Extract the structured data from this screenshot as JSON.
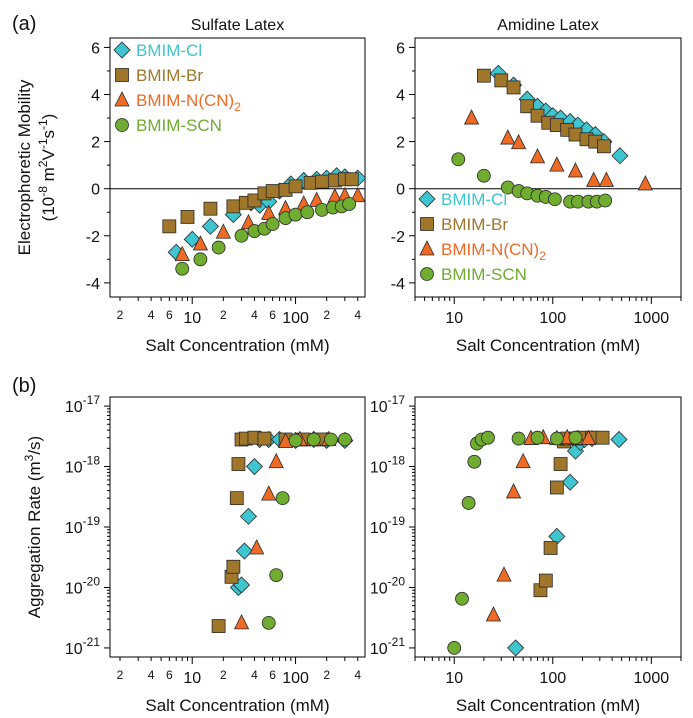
{
  "figure": {
    "panel_tags": [
      "(a)",
      "(b)"
    ]
  },
  "chart_data": [
    {
      "id": "a-left",
      "type": "scatter",
      "title": "Sulfate Latex",
      "xlabel": "Salt Concentration (mM)",
      "ylabel_line1": "Electrophoretic Mobility",
      "ylabel_line2": "(10",
      "ylabel_sup1": "-8",
      "ylabel_mid": " m",
      "ylabel_sup2": "2",
      "ylabel_mid2": "V",
      "ylabel_sup3": "-1",
      "ylabel_mid3": "s",
      "ylabel_sup4": "-1",
      "ylabel_end": ")",
      "xscale": "log",
      "xlim": [
        1.6,
        470
      ],
      "ylim": [
        -4.6,
        6.4
      ],
      "xticks_major": [
        "10",
        "100"
      ],
      "xticks_minor": [
        "2",
        "4",
        "6",
        "2",
        "4",
        "6",
        "2",
        "4"
      ],
      "yticks": [
        "-4",
        "-2",
        "0",
        "2",
        "4",
        "6"
      ],
      "zero_line": true,
      "legend": {
        "position": "top-left"
      },
      "series": [
        {
          "name": "BMIM-Cl",
          "color": "#3ec5cf",
          "marker": "diamond",
          "x": [
            7,
            10,
            15,
            25,
            37,
            45,
            55,
            70,
            90,
            120,
            160,
            200,
            250,
            300,
            400
          ],
          "y": [
            -2.7,
            -2.15,
            -1.6,
            -1.1,
            -0.6,
            -0.7,
            -0.55,
            -0.1,
            0.2,
            0.35,
            0.4,
            0.45,
            0.55,
            0.5,
            0.45
          ]
        },
        {
          "name": "BMIM-Br",
          "color": "#a0762a",
          "marker": "square",
          "x": [
            6,
            9,
            15,
            25,
            33,
            40,
            50,
            60,
            80,
            100,
            140,
            180,
            240,
            300,
            350
          ],
          "y": [
            -1.6,
            -1.2,
            -0.85,
            -0.75,
            -0.6,
            -0.5,
            -0.2,
            -0.1,
            -0.05,
            0.1,
            0.25,
            0.3,
            0.35,
            0.4,
            0.4
          ]
        },
        {
          "name": "BMIM-N(CN)",
          "name_sub": "2",
          "color": "#ee6b25",
          "marker": "triangle",
          "x": [
            8,
            12,
            20,
            35,
            55,
            80,
            120,
            160,
            240,
            300,
            400
          ],
          "y": [
            -2.8,
            -2.35,
            -1.85,
            -1.45,
            -1.05,
            -0.85,
            -0.65,
            -0.5,
            -0.35,
            -0.3,
            -0.3
          ]
        },
        {
          "name": "BMIM-SCN",
          "color": "#6fac2f",
          "marker": "circle",
          "x": [
            8,
            12,
            18,
            30,
            40,
            50,
            60,
            80,
            100,
            130,
            180,
            230,
            280,
            330
          ],
          "y": [
            -3.4,
            -3.0,
            -2.5,
            -2.0,
            -1.8,
            -1.7,
            -1.5,
            -1.25,
            -1.1,
            -1.0,
            -0.9,
            -0.8,
            -0.75,
            -0.65
          ]
        }
      ]
    },
    {
      "id": "a-right",
      "type": "scatter",
      "title": "Amidine Latex",
      "xlabel": "Salt Concentration (mM)",
      "xscale": "log",
      "xlim": [
        4,
        2000
      ],
      "ylim": [
        -4.6,
        6.4
      ],
      "xticks_major": [
        "10",
        "100",
        "1000"
      ],
      "yticks": [
        "-4",
        "-2",
        "0",
        "2",
        "4",
        "6"
      ],
      "zero_line": true,
      "legend": {
        "position": "bottom-left"
      },
      "series": [
        {
          "name": "BMIM-Cl",
          "color": "#3ec5cf",
          "marker": "diamond",
          "x": [
            28,
            40,
            55,
            70,
            85,
            100,
            120,
            150,
            180,
            220,
            270,
            330,
            480
          ],
          "y": [
            4.9,
            4.4,
            3.8,
            3.5,
            3.3,
            3.1,
            3.0,
            2.85,
            2.7,
            2.5,
            2.3,
            2.0,
            1.4
          ]
        },
        {
          "name": "BMIM-Br",
          "color": "#a0762a",
          "marker": "square",
          "x": [
            20,
            30,
            40,
            55,
            70,
            90,
            110,
            140,
            170,
            220,
            270,
            330
          ],
          "y": [
            4.8,
            4.6,
            4.3,
            3.5,
            3.1,
            2.8,
            2.7,
            2.5,
            2.3,
            2.1,
            2.0,
            1.8
          ]
        },
        {
          "name": "BMIM-N(CN)",
          "name_sub": "2",
          "color": "#ee6b25",
          "marker": "triangle",
          "x": [
            15,
            35,
            45,
            70,
            110,
            170,
            260,
            350,
            870
          ],
          "y": [
            3.0,
            2.15,
            1.95,
            1.35,
            1.0,
            0.75,
            0.35,
            0.35,
            0.2
          ]
        },
        {
          "name": "BMIM-SCN",
          "color": "#6fac2f",
          "marker": "circle",
          "x": [
            11,
            20,
            35,
            45,
            55,
            70,
            85,
            105,
            150,
            180,
            230,
            280,
            340
          ],
          "y": [
            1.25,
            0.55,
            0.05,
            -0.1,
            -0.2,
            -0.3,
            -0.35,
            -0.45,
            -0.55,
            -0.55,
            -0.55,
            -0.55,
            -0.5
          ]
        }
      ]
    },
    {
      "id": "b-left",
      "type": "scatter",
      "xlabel": "Salt Concentration (mM)",
      "ylabel": "Aggregation Rate (m",
      "ylabel_sup": "3",
      "ylabel_end": "/s)",
      "xscale": "log",
      "yscale": "log",
      "xlim": [
        1.6,
        470
      ],
      "ylim_exp": [
        -21.15,
        -16.85
      ],
      "xticks_major": [
        "10",
        "100"
      ],
      "xticks_minor": [
        "2",
        "4",
        "6",
        "2",
        "4",
        "6",
        "2",
        "4"
      ],
      "yticks_base": "10",
      "yticks_exp": [
        "-21",
        "-20",
        "-19",
        "-18",
        "-17"
      ],
      "series": [
        {
          "name": "BMIM-Cl",
          "color": "#3ec5cf",
          "marker": "diamond",
          "x": [
            28,
            30,
            32,
            35,
            40,
            45,
            55,
            70,
            100,
            150,
            200,
            300
          ],
          "y": [
            1e-20,
            1.1e-20,
            4e-20,
            1.5e-19,
            1e-18,
            2.8e-18,
            2.8e-18,
            2.8e-18,
            2.7e-18,
            2.8e-18,
            2.7e-18,
            2.7e-18
          ]
        },
        {
          "name": "BMIM-Br",
          "color": "#a0762a",
          "marker": "square",
          "x": [
            18,
            24,
            25,
            27,
            28,
            30,
            33,
            40,
            50,
            80,
            120,
            180
          ],
          "y": [
            2.3e-21,
            1.5e-20,
            2.2e-20,
            3e-19,
            1.1e-18,
            2.8e-18,
            2.9e-18,
            3e-18,
            2.9e-18,
            2.8e-18,
            2.8e-18,
            2.8e-18
          ]
        },
        {
          "name": "BMIM-N(CN)",
          "name_sub": "2",
          "color": "#ee6b25",
          "marker": "triangle",
          "x": [
            30,
            42,
            55,
            65,
            80,
            110,
            150,
            210
          ],
          "y": [
            2.6e-21,
            4.5e-20,
            3.5e-19,
            1.2e-18,
            2.6e-18,
            2.8e-18,
            2.8e-18,
            2.8e-18
          ]
        },
        {
          "name": "BMIM-SCN",
          "color": "#6fac2f",
          "marker": "circle",
          "x": [
            55,
            65,
            75,
            100,
            150,
            220,
            300
          ],
          "y": [
            2.6e-21,
            1.6e-20,
            3e-19,
            2.7e-18,
            2.8e-18,
            2.8e-18,
            2.8e-18
          ]
        }
      ]
    },
    {
      "id": "b-right",
      "type": "scatter",
      "xlabel": "Salt Concentration (mM)",
      "xscale": "log",
      "yscale": "log",
      "xlim": [
        4,
        2000
      ],
      "ylim_exp": [
        -21.15,
        -16.85
      ],
      "xticks_major": [
        "10",
        "100",
        "1000"
      ],
      "yticks_base": "10",
      "yticks_exp": [
        "-21",
        "-20",
        "-19",
        "-18",
        "-17"
      ],
      "series": [
        {
          "name": "BMIM-Cl",
          "color": "#3ec5cf",
          "marker": "diamond",
          "x": [
            42,
            110,
            150,
            170,
            190,
            210,
            250,
            470
          ],
          "y": [
            1e-21,
            7e-20,
            5.5e-19,
            1.8e-18,
            2.5e-18,
            2.8e-18,
            2.9e-18,
            2.8e-18
          ]
        },
        {
          "name": "BMIM-Br",
          "color": "#a0762a",
          "marker": "square",
          "x": [
            75,
            85,
            95,
            110,
            120,
            130,
            140,
            170,
            200,
            250,
            320
          ],
          "y": [
            9e-21,
            1.3e-20,
            4.5e-20,
            4.5e-19,
            1.1e-18,
            2.6e-18,
            2.9e-18,
            2.9e-18,
            3e-18,
            3e-18,
            3e-18
          ]
        },
        {
          "name": "BMIM-N(CN)",
          "name_sub": "2",
          "color": "#ee6b25",
          "marker": "triangle",
          "x": [
            25,
            32,
            40,
            50,
            60,
            80,
            110,
            140,
            180,
            230
          ],
          "y": [
            3.5e-21,
            1.6e-20,
            3.8e-19,
            1.2e-18,
            2.9e-18,
            3e-18,
            2.9e-18,
            3e-18,
            2.9e-18,
            2.9e-18
          ]
        },
        {
          "name": "BMIM-SCN",
          "color": "#6fac2f",
          "marker": "circle",
          "x": [
            10,
            12,
            14,
            16,
            17,
            19,
            22,
            45,
            70,
            110,
            170
          ],
          "y": [
            1e-21,
            6.5e-21,
            2.5e-19,
            1.2e-18,
            2.4e-18,
            2.8e-18,
            3e-18,
            2.9e-18,
            3e-18,
            2.9e-18,
            3e-18
          ]
        }
      ]
    }
  ]
}
